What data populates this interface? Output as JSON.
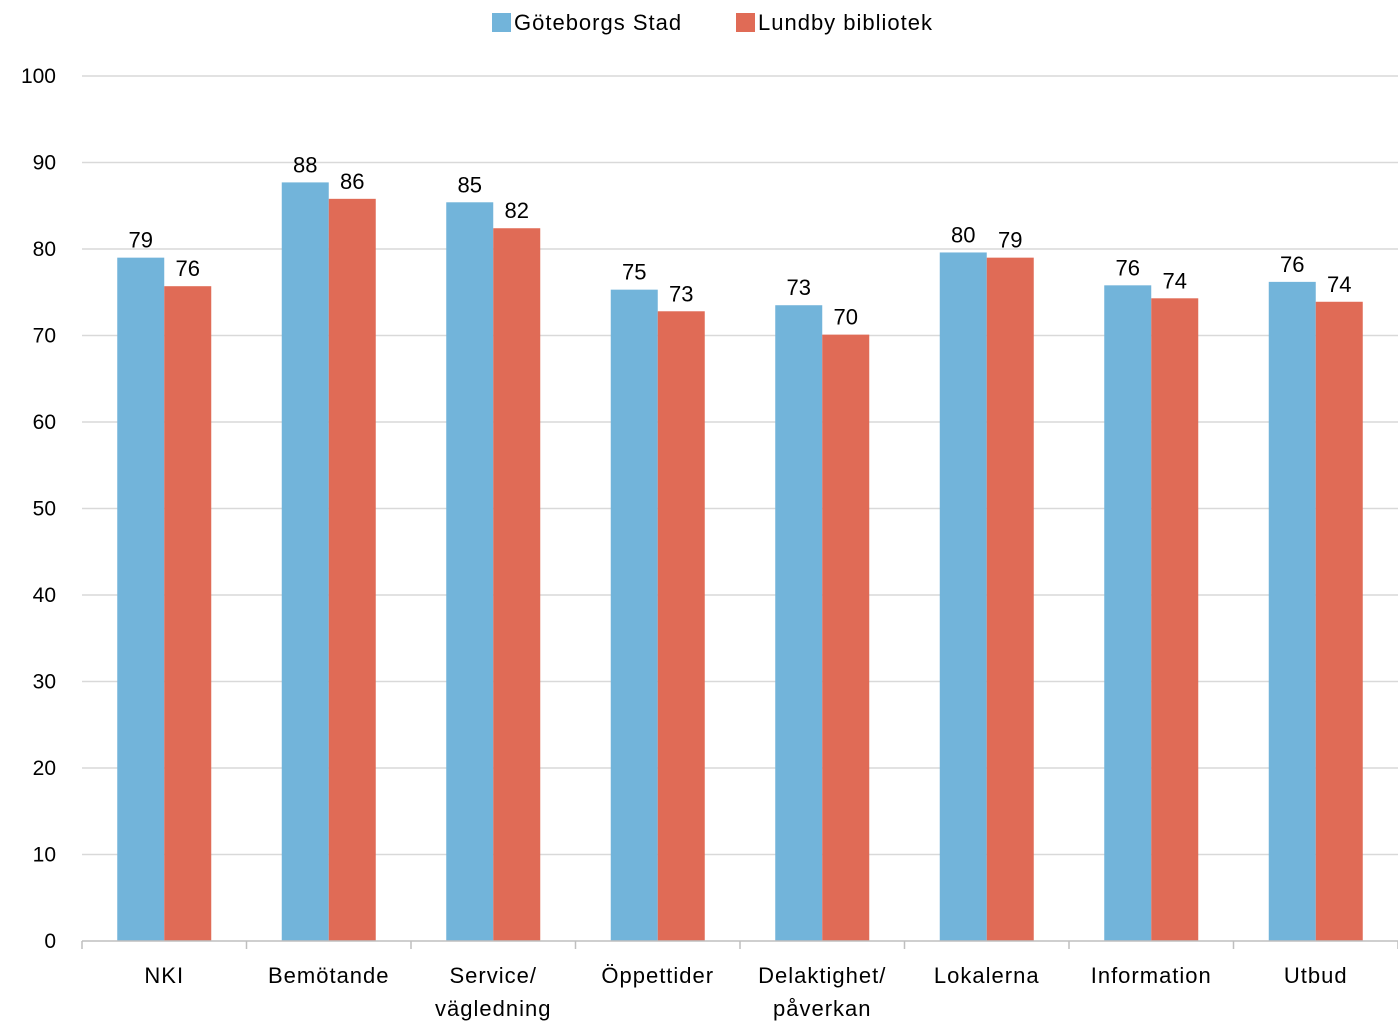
{
  "chart_data": {
    "type": "bar",
    "title": "",
    "xlabel": "",
    "ylabel": "",
    "ylim": [
      0,
      100
    ],
    "yticks": [
      "0",
      "10",
      "20",
      "30",
      "40",
      "50",
      "60",
      "70",
      "80",
      "90",
      "100"
    ],
    "grid": true,
    "legend_position": "top",
    "categories": [
      [
        "NKI"
      ],
      [
        "Bemötande"
      ],
      [
        "Service/",
        "vägledning"
      ],
      [
        "Öppettider"
      ],
      [
        "Delaktighet/",
        "påverkan"
      ],
      [
        "Lokalerna"
      ],
      [
        "Information"
      ],
      [
        "Utbud"
      ]
    ],
    "series": [
      {
        "name": "Göteborgs Stad",
        "color": "#72b4da",
        "values": [
          79,
          87.7,
          85.4,
          75.3,
          73.5,
          79.6,
          75.8,
          76.2
        ],
        "labels": [
          "79",
          "88",
          "85",
          "75",
          "73",
          "80",
          "76",
          "76"
        ]
      },
      {
        "name": "Lundby bibliotek",
        "color": "#e06b56",
        "values": [
          75.7,
          85.8,
          82.4,
          72.8,
          70.1,
          79,
          74.3,
          73.9
        ],
        "labels": [
          "76",
          "86",
          "82",
          "73",
          "70",
          "79",
          "74",
          "74"
        ]
      }
    ]
  }
}
